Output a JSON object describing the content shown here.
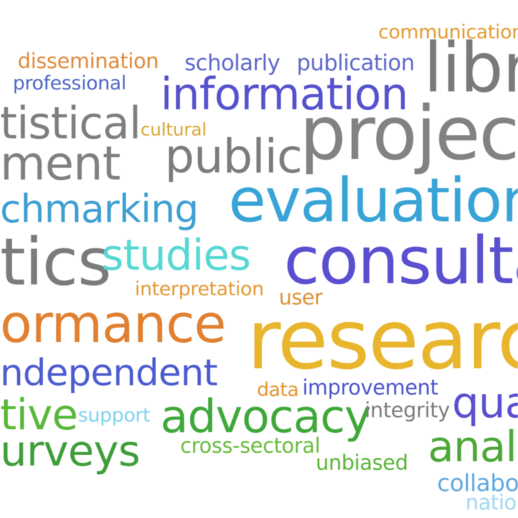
{
  "words": [
    {
      "text": "communication",
      "color": "#e39a2e"
    },
    {
      "text": "dissemination",
      "color": "#e0893a"
    },
    {
      "text": "scholarly",
      "color": "#5d68c9"
    },
    {
      "text": "publication",
      "color": "#5d68c9"
    },
    {
      "text": "libra",
      "color": "#7a7a7a"
    },
    {
      "text": "professional",
      "color": "#4f66c4"
    },
    {
      "text": "information",
      "color": "#5552cc"
    },
    {
      "text": "tistical",
      "color": "#7e7e7e"
    },
    {
      "text": "cultural",
      "color": "#d9a636"
    },
    {
      "text": "projects",
      "color": "#828282"
    },
    {
      "text": "ment",
      "color": "#808080"
    },
    {
      "text": "public",
      "color": "#7c7c7c"
    },
    {
      "text": "evaluation",
      "color": "#38a3d6"
    },
    {
      "text": "chmarking",
      "color": "#3f9fd0"
    },
    {
      "text": "tics",
      "color": "#7b7b7b"
    },
    {
      "text": "studies",
      "color": "#56d8d2"
    },
    {
      "text": "consulta",
      "color": "#5a4fcf"
    },
    {
      "text": "interpretation",
      "color": "#e29a35"
    },
    {
      "text": "user",
      "color": "#df8f36"
    },
    {
      "text": "ormance",
      "color": "#e08030"
    },
    {
      "text": "researc",
      "color": "#e8b52c"
    },
    {
      "text": "ndependent",
      "color": "#4c5bd0"
    },
    {
      "text": "data",
      "color": "#e3962d"
    },
    {
      "text": "improvement",
      "color": "#4b54cb"
    },
    {
      "text": "tive",
      "color": "#57b838"
    },
    {
      "text": "support",
      "color": "#7fd2ee"
    },
    {
      "text": "advocacy",
      "color": "#3fa83a"
    },
    {
      "text": "integrity",
      "color": "#7b7b7b"
    },
    {
      "text": "qua",
      "color": "#5a4fcf"
    },
    {
      "text": "urveys",
      "color": "#3f9e3a"
    },
    {
      "text": "cross-sectoral",
      "color": "#68bb3c"
    },
    {
      "text": "analy",
      "color": "#4ea73a"
    },
    {
      "text": "unbiased",
      "color": "#5ab535"
    },
    {
      "text": "collabor",
      "color": "#5ea8e0"
    },
    {
      "text": "natio",
      "color": "#9fd8f2"
    }
  ]
}
